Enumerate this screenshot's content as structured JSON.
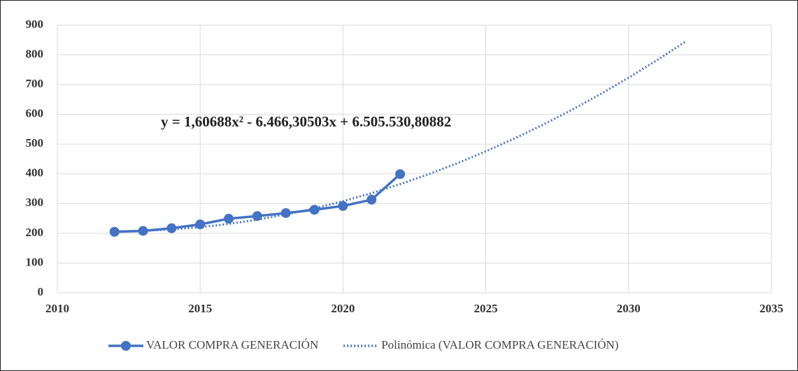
{
  "chart_data": {
    "type": "line",
    "annotation": "y = 1,60688x² - 6.466,30503x + 6.505.530,80882",
    "series": [
      {
        "name": "VALOR COMPRA GENERACIÓN",
        "color": "#4472c4",
        "style": "solid",
        "markers": true,
        "x": [
          2012,
          2013,
          2014,
          2015,
          2016,
          2017,
          2018,
          2019,
          2020,
          2021,
          2022
        ],
        "values": [
          205,
          208,
          217,
          230,
          249,
          258,
          268,
          279,
          292,
          313,
          399
        ]
      },
      {
        "name": "Polinómica (VALOR COMPRA GENERACIÓN)",
        "color": "#4472c4",
        "style": "dotted",
        "markers": false,
        "x": [
          2012,
          2013,
          2014,
          2015,
          2016,
          2017,
          2018,
          2019,
          2020,
          2021,
          2022,
          2023,
          2024,
          2025,
          2026,
          2027,
          2028,
          2029,
          2030,
          2031,
          2032
        ],
        "values": [
          206.7,
          208.1,
          212.6,
          220.5,
          231.5,
          245.8,
          263.2,
          283.9,
          307.8,
          334.9,
          365.2,
          398.7,
          435.4,
          475.5,
          518.6,
          565,
          614.5,
          667.3,
          723.4,
          782.7,
          845.1
        ]
      }
    ],
    "xlim": [
      2010,
      2035
    ],
    "xticks": [
      2010,
      2015,
      2020,
      2025,
      2030,
      2035
    ],
    "ylim": [
      0,
      900
    ],
    "yticks": [
      0,
      100,
      200,
      300,
      400,
      500,
      600,
      700,
      800,
      900
    ],
    "grid": true,
    "legend": "bottom"
  }
}
